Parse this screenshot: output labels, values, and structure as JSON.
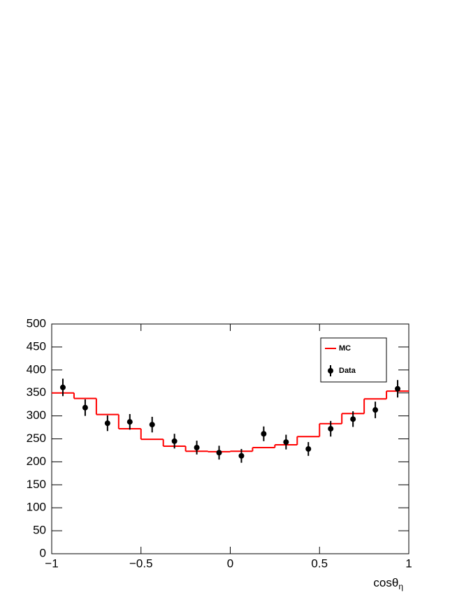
{
  "chart_data": {
    "type": "histogram",
    "bins": [
      -1,
      -0.875,
      -0.75,
      -0.625,
      -0.5,
      -0.375,
      -0.25,
      -0.125,
      0,
      0.125,
      0.25,
      0.375,
      0.5,
      0.625,
      0.75,
      0.875,
      1
    ],
    "series": [
      {
        "name": "MC",
        "color": "#ff0000",
        "style": "step",
        "values": [
          350,
          338,
          303,
          272,
          249,
          234,
          223,
          222,
          223,
          231,
          237,
          255,
          283,
          305,
          337,
          354
        ]
      },
      {
        "name": "Data",
        "color": "#000000",
        "style": "points",
        "values": [
          362,
          318,
          284,
          287,
          281,
          245,
          231,
          220,
          213,
          261,
          243,
          228,
          272,
          293,
          313,
          359
        ],
        "errors": [
          19,
          18,
          17,
          17,
          17,
          16,
          15,
          15,
          15,
          16,
          16,
          15,
          17,
          17,
          18,
          19
        ]
      }
    ],
    "xlim": [
      -1,
      1
    ],
    "ylim": [
      0,
      500
    ],
    "xticks": [
      {
        "value": -1,
        "label": "−1"
      },
      {
        "value": -0.5,
        "label": "−0.5"
      },
      0,
      0.5,
      1
    ],
    "yticks": [
      0,
      50,
      100,
      150,
      200,
      250,
      300,
      350,
      400,
      450,
      500
    ],
    "xlabel": "cosθ",
    "xlabel_subscript": "η",
    "legend": "top-right"
  }
}
